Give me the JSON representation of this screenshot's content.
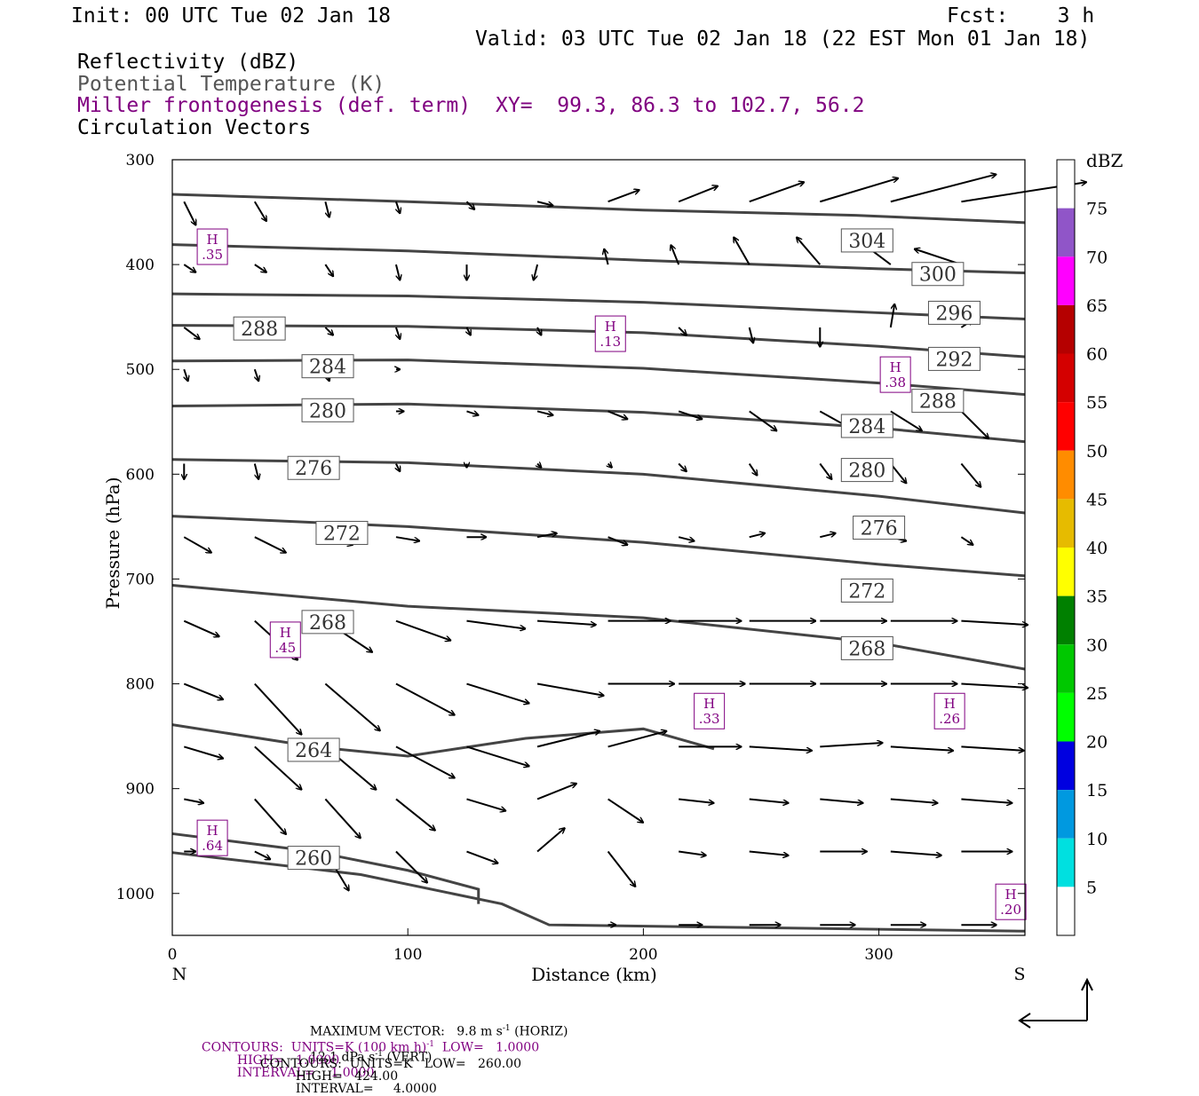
{
  "header": {
    "init": "Init: 00 UTC Tue 02 Jan 18",
    "fcst": "Fcst:    3 h",
    "valid": "Valid: 03 UTC Tue 02 Jan 18 (22 EST Mon 01 Jan 18)",
    "field1": "Reflectivity (dBZ)",
    "field2": "Potential Temperature (K)",
    "field3": "Miller frontogenesis (def. term)",
    "xy": "XY=  99.3, 86.3 to 102.7, 56.2",
    "field4": "Circulation Vectors",
    "color_field1": "#000000",
    "color_field2": "#555555",
    "color_field3": "#800080"
  },
  "chart_data": {
    "type": "cross-section",
    "xlabel": "Distance (km)",
    "ylabel": "Pressure (hPa)",
    "x_ticks": [
      "0",
      "100",
      "200",
      "300"
    ],
    "y_ticks": [
      "300",
      "400",
      "500",
      "600",
      "700",
      "800",
      "900",
      "1000"
    ],
    "x_end_labels": {
      "left": "N",
      "right": "S"
    },
    "xlim": [
      0,
      362
    ],
    "ylim": [
      300,
      1040
    ],
    "isentropes": [
      {
        "label": "304",
        "points": [
          [
            0,
            333
          ],
          [
            100,
            340
          ],
          [
            200,
            348
          ],
          [
            290,
            353
          ],
          [
            362,
            360
          ]
        ],
        "label_at": [
          295,
          377
        ]
      },
      {
        "label": "300",
        "points": [
          [
            0,
            381
          ],
          [
            100,
            387
          ],
          [
            200,
            396
          ],
          [
            300,
            404
          ],
          [
            362,
            408
          ]
        ],
        "label_at": [
          325,
          409
        ]
      },
      {
        "label": "296",
        "points": [
          [
            0,
            428
          ],
          [
            100,
            430
          ],
          [
            200,
            436
          ],
          [
            300,
            446
          ],
          [
            362,
            452
          ]
        ],
        "label_at": [
          332,
          446
        ]
      },
      {
        "label": "292",
        "points": [
          [
            0,
            458
          ],
          [
            100,
            459
          ],
          [
            200,
            465
          ],
          [
            300,
            478
          ],
          [
            362,
            488
          ]
        ],
        "label_at": [
          332,
          490
        ]
      },
      {
        "label": "288",
        "points": [
          [
            0,
            492
          ],
          [
            100,
            491
          ],
          [
            200,
            499
          ],
          [
            300,
            513
          ],
          [
            362,
            524
          ]
        ],
        "label_at": [
          325,
          530
        ],
        "label_at2": [
          37,
          461
        ]
      },
      {
        "label": "284",
        "points": [
          [
            0,
            535
          ],
          [
            100,
            533
          ],
          [
            200,
            541
          ],
          [
            300,
            556
          ],
          [
            362,
            569
          ]
        ],
        "label_at": [
          295,
          554
        ],
        "label_at2": [
          66,
          497
        ]
      },
      {
        "label": "280",
        "points": [
          [
            0,
            586
          ],
          [
            100,
            589
          ],
          [
            200,
            600
          ],
          [
            300,
            621
          ],
          [
            362,
            637
          ]
        ],
        "label_at": [
          295,
          596
        ],
        "label_at2": [
          66,
          539
        ]
      },
      {
        "label": "276",
        "points": [
          [
            0,
            640
          ],
          [
            100,
            650
          ],
          [
            200,
            665
          ],
          [
            300,
            686
          ],
          [
            362,
            697
          ]
        ],
        "label_at": [
          300,
          651
        ],
        "label_at2": [
          60,
          594
        ]
      },
      {
        "label": "272",
        "points": [
          [
            0,
            706
          ],
          [
            100,
            726
          ],
          [
            200,
            737
          ],
          [
            300,
            761
          ],
          [
            362,
            786
          ]
        ],
        "label_at": [
          295,
          711
        ],
        "label_at2": [
          72,
          656
        ]
      },
      {
        "label": "268",
        "points": [
          [
            0,
            839
          ],
          [
            60,
            860
          ],
          [
            100,
            869
          ],
          [
            150,
            852
          ],
          [
            200,
            843
          ],
          [
            230,
            862
          ]
        ],
        "label_at": [
          295,
          766
        ],
        "label_at2": [
          66,
          741
        ]
      },
      {
        "label": "264",
        "points": [
          [
            0,
            943
          ],
          [
            60,
            960
          ],
          [
            100,
            978
          ],
          [
            130,
            996
          ],
          [
            130,
            1010
          ]
        ],
        "label_at": [
          60,
          863
        ]
      },
      {
        "label": "260",
        "points": [
          [
            0,
            961
          ],
          [
            80,
            982
          ],
          [
            140,
            1010
          ],
          [
            160,
            1030
          ],
          [
            362,
            1036
          ]
        ],
        "label_at": [
          60,
          966
        ]
      }
    ],
    "frontogenesis_maxima": [
      {
        "label": "H",
        "value": ".35",
        "x": 17,
        "y": 383
      },
      {
        "label": "H",
        "value": ".13",
        "x": 186,
        "y": 466
      },
      {
        "label": "H",
        "value": ".38",
        "x": 307,
        "y": 505
      },
      {
        "label": "H",
        "value": ".45",
        "x": 48,
        "y": 758
      },
      {
        "label": "H",
        "value": ".33",
        "x": 228,
        "y": 826
      },
      {
        "label": "H",
        "value": ".26",
        "x": 330,
        "y": 826
      },
      {
        "label": "H",
        "value": ".64",
        "x": 17,
        "y": 947
      },
      {
        "label": "H",
        "value": ".20",
        "x": 356,
        "y": 1008
      }
    ],
    "vector_rows": [
      {
        "p": 340,
        "u": [
          0.3,
          0.3,
          0.1,
          0.1,
          0.2,
          0.4,
          0.8,
          1.0,
          1.4,
          2.0,
          2.7,
          3.2
        ],
        "w": [
          0.6,
          0.5,
          0.4,
          0.3,
          0.2,
          0.1,
          -0.3,
          -0.4,
          -0.5,
          -0.6,
          -0.7,
          -0.5
        ]
      },
      {
        "p": 400,
        "u": [
          0.3,
          0.3,
          0.2,
          0.1,
          0,
          -0.1,
          -0.1,
          -0.2,
          -0.4,
          -0.6,
          -0.8,
          -1.2
        ],
        "w": [
          0.2,
          0.2,
          0.3,
          0.4,
          0.4,
          0.4,
          -0.4,
          -0.5,
          -0.7,
          -0.7,
          -0.6,
          -0.4
        ]
      },
      {
        "p": 460,
        "u": [
          0.4,
          0.3,
          0.2,
          0.1,
          0.1,
          0.1,
          0.2,
          0.2,
          0.1,
          0,
          0.1,
          0.3
        ],
        "w": [
          0.3,
          0.3,
          0.2,
          0.3,
          0.2,
          0.2,
          0.1,
          0.2,
          0.4,
          0.5,
          -0.6,
          -0.2
        ]
      },
      {
        "p": 500,
        "u": [
          0.1,
          0.1,
          0.1,
          0.1,
          0,
          0,
          0,
          0,
          0,
          0,
          0,
          0
        ],
        "w": [
          0.3,
          0.3,
          0.3,
          0,
          0,
          0,
          0,
          0,
          0,
          0,
          0,
          0
        ]
      },
      {
        "p": 540,
        "u": [
          0,
          0,
          0.1,
          0.2,
          0.3,
          0.4,
          0.5,
          0.6,
          0.7,
          0.9,
          0.8,
          0.7
        ],
        "w": [
          0,
          0,
          0,
          0,
          0.1,
          0.1,
          0.2,
          0.2,
          0.5,
          0.5,
          0.5,
          0.7
        ]
      },
      {
        "p": 590,
        "u": [
          0,
          0.1,
          0.1,
          0.1,
          0,
          0.1,
          0.1,
          0.2,
          0.2,
          0.3,
          0.4,
          0.5
        ],
        "w": [
          0.4,
          0.4,
          0.3,
          0.2,
          0.1,
          0.1,
          0.1,
          0.2,
          0.3,
          0.4,
          0.5,
          0.6
        ]
      },
      {
        "p": 660,
        "u": [
          0.7,
          0.8,
          0.7,
          0.6,
          0.5,
          0.5,
          0.5,
          0.4,
          0.4,
          0.4,
          0.4,
          0.3
        ],
        "w": [
          0.4,
          0.4,
          0.2,
          0.1,
          0,
          -0.1,
          0.2,
          0.1,
          -0.1,
          -0.1,
          0.1,
          0.2
        ]
      },
      {
        "p": 740,
        "u": [
          0.9,
          1.1,
          1.2,
          1.4,
          1.5,
          1.5,
          1.6,
          1.6,
          1.7,
          1.7,
          1.7,
          1.7
        ],
        "w": [
          0.4,
          1.0,
          0.8,
          0.5,
          0.2,
          0.1,
          0,
          0,
          0,
          0,
          0,
          0.1
        ]
      },
      {
        "p": 800,
        "u": [
          1.0,
          1.2,
          1.4,
          1.5,
          1.6,
          1.7,
          1.7,
          1.7,
          1.7,
          1.7,
          1.7,
          1.7
        ],
        "w": [
          0.4,
          1.3,
          1.2,
          0.8,
          0.5,
          0.3,
          0,
          0,
          0,
          0,
          0,
          0.1
        ]
      },
      {
        "p": 860,
        "u": [
          1.0,
          1.2,
          1.3,
          1.5,
          1.6,
          1.6,
          1.5,
          1.6,
          1.6,
          1.6,
          1.6,
          1.6
        ],
        "w": [
          0.3,
          1.1,
          1.1,
          0.8,
          0.5,
          -0.4,
          -0.4,
          0,
          0.1,
          -0.1,
          0.1,
          0.1
        ]
      },
      {
        "p": 910,
        "u": [
          0.5,
          0.8,
          0.9,
          1.0,
          1.0,
          1.0,
          0.9,
          0.9,
          1.0,
          1.1,
          1.2,
          1.3
        ],
        "w": [
          0.1,
          0.9,
          1.0,
          0.8,
          0.3,
          -0.4,
          0.6,
          0.1,
          0.1,
          0.1,
          0.1,
          0.1
        ]
      },
      {
        "p": 960,
        "u": [
          0.3,
          0.4,
          0.6,
          0.8,
          0.8,
          0.7,
          0.7,
          0.7,
          1.0,
          1.2,
          1.3,
          1.3
        ],
        "w": [
          0,
          0.2,
          1.0,
          0.8,
          0.3,
          -0.6,
          0.9,
          0.1,
          0.1,
          0,
          0.1,
          0
        ]
      },
      {
        "p": 1030,
        "u": [
          0,
          0,
          0,
          0,
          0,
          0,
          0.2,
          0.6,
          0.8,
          0.9,
          0.9,
          0.9
        ],
        "w": [
          0,
          0,
          0,
          0,
          0,
          0,
          0,
          0,
          0,
          0,
          0,
          0
        ]
      }
    ],
    "colorbar": {
      "title": "dBZ",
      "ticks": [
        "5",
        "10",
        "15",
        "20",
        "25",
        "30",
        "35",
        "40",
        "45",
        "50",
        "55",
        "60",
        "65",
        "70",
        "75"
      ],
      "colors": [
        "#ffffff",
        "#00e0e0",
        "#0099e0",
        "#0000e0",
        "#00ff00",
        "#00c800",
        "#008000",
        "#ffff00",
        "#e6bb00",
        "#ff8c00",
        "#ff0000",
        "#d40000",
        "#b50000",
        "#ff00ff",
        "#9055c8",
        "#ffffff"
      ]
    }
  },
  "footer": {
    "line1a": "MAXIMUM VECTOR:   9.8 m s",
    "line1a_sup": "-1",
    "line1b": " (HORIZ)",
    "line1c": "12.1 dPa s",
    "line1c_sup": "-1",
    "line1d": " (VERT)",
    "line2a": "CONTOURS:  UNITS=K (100 km h)",
    "line2a_sup": "-1",
    "line2b": "  LOW=   1.0000",
    "line2c": "HIGH=   1.0000",
    "line2d": "INTERVAL=    1.0000",
    "line3a": "CONTOURS:  UNITS=K   LOW=   260.00",
    "line3b": "HIGH=   424.00",
    "line3c": "INTERVAL=     4.0000"
  }
}
